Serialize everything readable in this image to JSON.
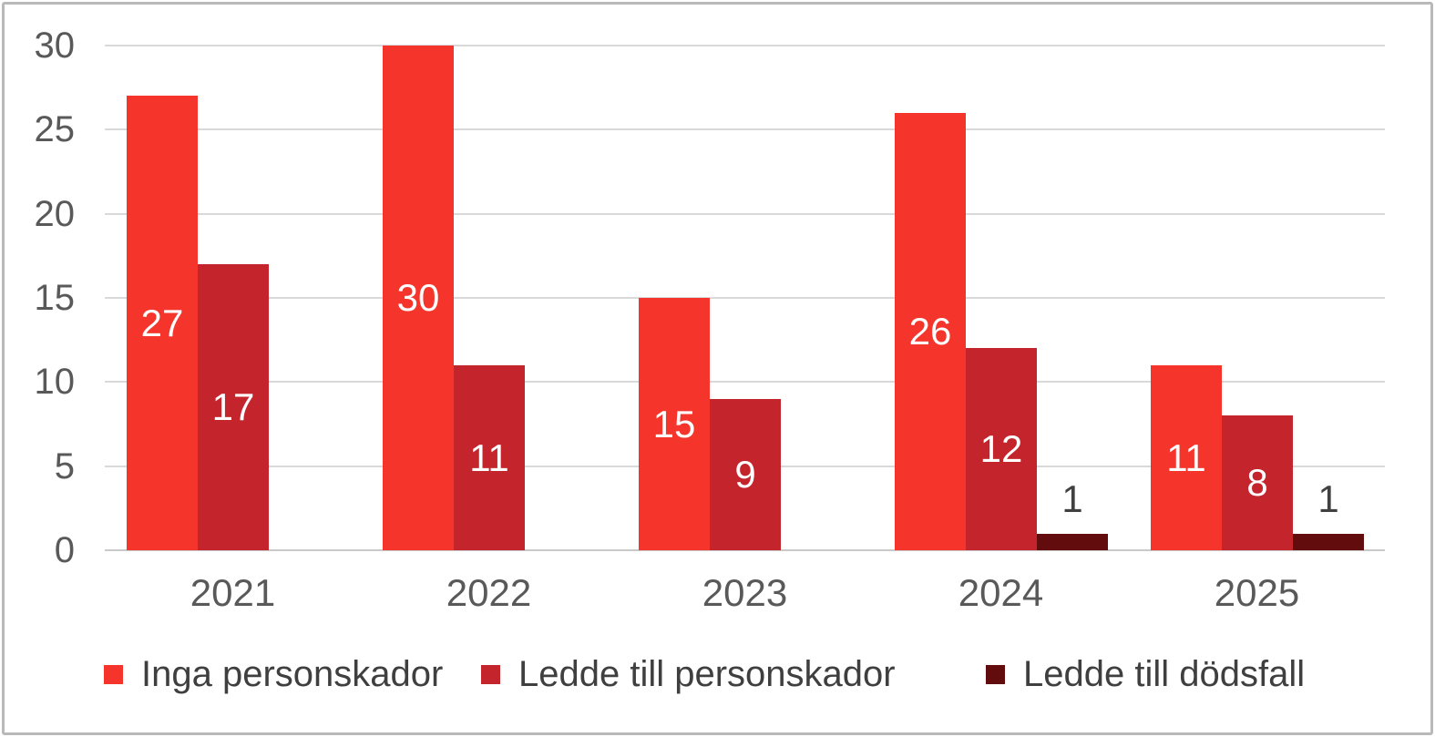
{
  "chart_data": {
    "type": "bar",
    "title": "",
    "categories": [
      "2021",
      "2022",
      "2023",
      "2024",
      "2025"
    ],
    "series": [
      {
        "name": "Inga personskador",
        "color": "#f5352b",
        "label_color": "#ffffff",
        "values": [
          27,
          30,
          15,
          26,
          11
        ]
      },
      {
        "name": "Ledde till personskador",
        "color": "#c4242b",
        "label_color": "#ffffff",
        "values": [
          17,
          11,
          9,
          12,
          8
        ]
      },
      {
        "name": "Ledde till dödsfall",
        "color": "#620c0e",
        "label_color": "#404040",
        "values": [
          0,
          0,
          0,
          1,
          1
        ]
      }
    ],
    "ylim": [
      0,
      30
    ],
    "yticks": [
      0,
      5,
      10,
      15,
      20,
      25,
      30
    ],
    "grid": "horizontal",
    "gridline_color": "#d9d9d9",
    "baseline_color": "#c9c9c9",
    "axis_label_color": "#595959",
    "legend_position": "bottom",
    "legend_text_color": "#3f3f3f",
    "outside_label_color": "#404040"
  }
}
